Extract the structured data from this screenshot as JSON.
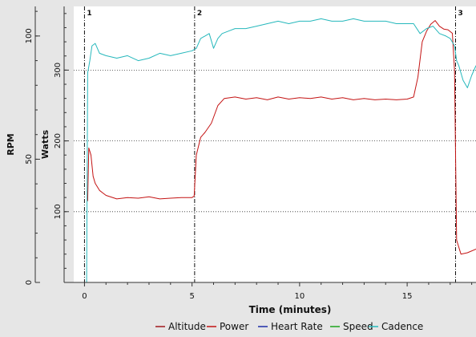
{
  "chart_data": {
    "type": "line",
    "xlabel": "Time (minutes)",
    "xlim": [
      -0.5,
      18.2
    ],
    "x_ticks": [
      0,
      5,
      10,
      15
    ],
    "axes": [
      {
        "key": "rpm",
        "label": "RPM",
        "ylim": [
          0,
          112
        ],
        "ticks": [
          0,
          50,
          100
        ]
      },
      {
        "key": "watts",
        "label": "Watts",
        "ylim": [
          0,
          390
        ],
        "ticks": [
          100,
          200,
          300
        ]
      }
    ],
    "gridlines_watts": [
      100,
      200,
      300
    ],
    "intervals": [
      {
        "label": "1",
        "x": 0.0
      },
      {
        "label": "2",
        "x": 5.12
      },
      {
        "label": "3",
        "x": 17.25
      }
    ],
    "legend": {
      "placement": "bottom",
      "entries": [
        "Altitude",
        "Power",
        "Heart Rate",
        "Speed",
        "Cadence"
      ]
    },
    "series": [
      {
        "name": "Altitude",
        "color": "#a0191e",
        "axis": "watts",
        "x": [],
        "y": []
      },
      {
        "name": "Power",
        "color": "#c41414",
        "axis": "watts",
        "x": [
          0.15,
          0.2,
          0.3,
          0.4,
          0.5,
          0.7,
          1.0,
          1.5,
          2.0,
          2.5,
          3.0,
          3.5,
          4.0,
          4.5,
          5.0,
          5.1,
          5.2,
          5.4,
          5.6,
          5.9,
          6.2,
          6.5,
          7.0,
          7.5,
          8.0,
          8.5,
          9.0,
          9.5,
          10.0,
          10.5,
          11.0,
          11.5,
          12.0,
          12.5,
          13.0,
          13.5,
          14.0,
          14.5,
          15.0,
          15.3,
          15.5,
          15.7,
          15.9,
          16.1,
          16.3,
          16.5,
          16.7,
          16.9,
          17.1,
          17.2,
          17.3,
          17.5,
          17.8,
          18.2
        ],
        "y": [
          115,
          190,
          180,
          150,
          140,
          130,
          123,
          118,
          120,
          119,
          121,
          118,
          119,
          120,
          120,
          122,
          180,
          205,
          212,
          225,
          250,
          260,
          262,
          259,
          261,
          258,
          262,
          259,
          261,
          260,
          262,
          259,
          261,
          258,
          260,
          258,
          259,
          258,
          259,
          262,
          290,
          340,
          355,
          365,
          370,
          362,
          358,
          357,
          352,
          300,
          60,
          40,
          42,
          47
        ]
      },
      {
        "name": "Heart Rate",
        "color": "#1f2fa8",
        "axis": "rpm",
        "x": [],
        "y": []
      },
      {
        "name": "Speed",
        "color": "#1ea51e",
        "axis": "rpm",
        "x": [],
        "y": []
      },
      {
        "name": "Cadence",
        "color": "#26b8bc",
        "axis": "rpm",
        "x": [
          0.1,
          0.15,
          0.25,
          0.35,
          0.5,
          0.7,
          1.0,
          1.5,
          2.0,
          2.5,
          3.0,
          3.5,
          4.0,
          4.5,
          5.0,
          5.2,
          5.4,
          5.6,
          5.8,
          6.0,
          6.2,
          6.4,
          6.7,
          7.0,
          7.5,
          8.0,
          8.5,
          9.0,
          9.5,
          10.0,
          10.5,
          11.0,
          11.5,
          12.0,
          12.5,
          13.0,
          13.5,
          14.0,
          14.5,
          15.0,
          15.3,
          15.6,
          15.9,
          16.2,
          16.5,
          16.8,
          17.0,
          17.2,
          17.3,
          17.4,
          17.6,
          17.8,
          18.0,
          18.2
        ],
        "y": [
          0,
          85,
          90,
          96,
          97,
          93,
          92,
          91,
          92,
          90,
          91,
          93,
          92,
          93,
          94,
          95,
          99,
          100,
          101,
          95,
          99,
          101,
          102,
          103,
          103,
          104,
          105,
          106,
          105,
          106,
          106,
          107,
          106,
          106,
          107,
          106,
          106,
          106,
          105,
          105,
          105,
          101,
          103,
          104,
          101,
          100,
          99,
          96,
          90,
          88,
          82,
          79,
          84,
          88
        ]
      }
    ]
  }
}
